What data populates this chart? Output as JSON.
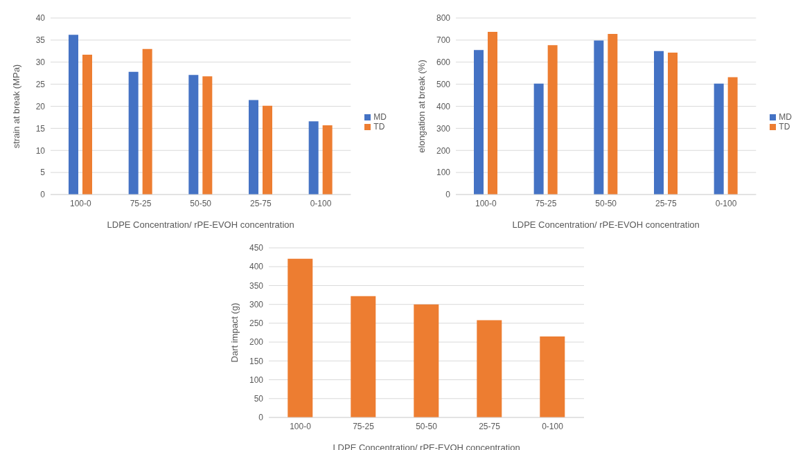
{
  "chart_data": [
    {
      "type": "bar",
      "categories": [
        "100-0",
        "75-25",
        "50-50",
        "25-75",
        "0-100"
      ],
      "xlabel": "LDPE Concentration/ rPE-EVOH concentration",
      "ylabel": "strain at break (MPa)",
      "ylim": [
        0,
        40
      ],
      "yticks": [
        0,
        5,
        10,
        15,
        20,
        25,
        30,
        35,
        40
      ],
      "grid": "y",
      "legend": "right",
      "series": [
        {
          "name": "MD",
          "color": "#4472c4",
          "values": [
            36.2,
            27.8,
            27.1,
            21.4,
            16.6
          ]
        },
        {
          "name": "TD",
          "color": "#ed7d31",
          "values": [
            31.7,
            33.0,
            26.8,
            20.1,
            15.7
          ]
        }
      ]
    },
    {
      "type": "bar",
      "categories": [
        "100-0",
        "75-25",
        "50-50",
        "25-75",
        "0-100"
      ],
      "xlabel": "LDPE Concentration/ rPE-EVOH concentration",
      "ylabel": "elongation at break (%)",
      "ylim": [
        0,
        800
      ],
      "yticks": [
        0,
        100,
        200,
        300,
        400,
        500,
        600,
        700,
        800
      ],
      "grid": "y",
      "legend": "right",
      "series": [
        {
          "name": "MD",
          "color": "#4472c4",
          "values": [
            655,
            503,
            698,
            650,
            503
          ]
        },
        {
          "name": "TD",
          "color": "#ed7d31",
          "values": [
            737,
            677,
            728,
            643,
            532
          ]
        }
      ]
    },
    {
      "type": "bar",
      "categories": [
        "100-0",
        "75-25",
        "50-50",
        "25-75",
        "0-100"
      ],
      "xlabel": "LDPE Concentration/ rPE-EVOH concentration",
      "ylabel": "Dart impact (g)",
      "ylim": [
        0,
        450
      ],
      "yticks": [
        0,
        50,
        100,
        150,
        200,
        250,
        300,
        350,
        400,
        450
      ],
      "grid": "y",
      "series": [
        {
          "color": "#ed7d31",
          "values": [
            421,
            322,
            300,
            258,
            215
          ]
        }
      ]
    }
  ]
}
